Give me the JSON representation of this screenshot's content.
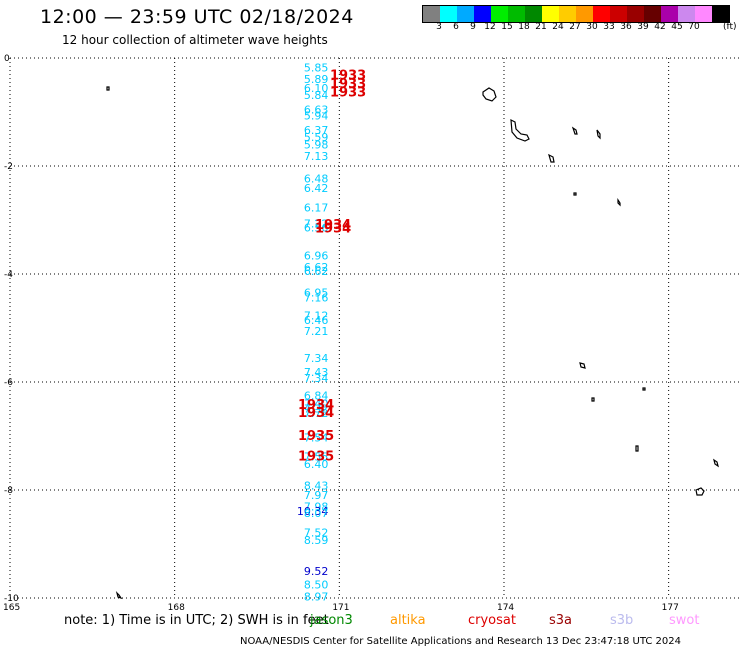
{
  "title": "12:00 — 23:59 UTC 02/18/2024",
  "subtitle": "12 hour collection of altimeter wave heights",
  "colorbar": {
    "colors": [
      "#808080",
      "#00ffff",
      "#00aaff",
      "#0000ff",
      "#00ee00",
      "#00bb00",
      "#008800",
      "#ffff00",
      "#ffcc00",
      "#ff9900",
      "#ff0000",
      "#cc0000",
      "#990000",
      "#660000",
      "#aa00aa",
      "#cc88ee",
      "#ff88ff",
      "#000000"
    ],
    "labels": [
      "3",
      "6",
      "9",
      "12",
      "15",
      "18",
      "21",
      "24",
      "27",
      "30",
      "33",
      "36",
      "39",
      "42",
      "45",
      "70"
    ],
    "unit": "(ft)"
  },
  "axes": {
    "lat_ticks": [
      "0",
      "-2",
      "-4",
      "-6",
      "-8",
      "-10"
    ],
    "lon_ticks": [
      "165",
      "168",
      "171",
      "174",
      "177"
    ]
  },
  "map_data": {
    "lon_range": [
      165,
      178.3
    ],
    "lat_range": [
      -10,
      0
    ],
    "track_lon": 170.8,
    "swh_points": [
      {
        "lat": -0.28,
        "value": "5.85",
        "color": "#00ccff"
      },
      {
        "lat": -0.52,
        "value": "5.89",
        "color": "#00ccff"
      },
      {
        "lat": -0.7,
        "value": "6.10",
        "color": "#00ccff"
      },
      {
        "lat": -0.85,
        "value": "5.84",
        "color": "#00ccff"
      },
      {
        "lat": -1.15,
        "value": "6.63",
        "color": "#00ccff"
      },
      {
        "lat": -1.28,
        "value": "5.94",
        "color": "#00ccff"
      },
      {
        "lat": -1.58,
        "value": "6.37",
        "color": "#00ccff"
      },
      {
        "lat": -1.72,
        "value": "5.59",
        "color": "#00ccff"
      },
      {
        "lat": -1.88,
        "value": "5.98",
        "color": "#00ccff"
      },
      {
        "lat": -2.12,
        "value": "7.13",
        "color": "#00ccff"
      },
      {
        "lat": -2.58,
        "value": "6.48",
        "color": "#00ccff"
      },
      {
        "lat": -2.78,
        "value": "6.42",
        "color": "#00ccff"
      },
      {
        "lat": -3.18,
        "value": "6.17",
        "color": "#00ccff"
      },
      {
        "lat": -3.52,
        "value": "7.22",
        "color": "#00ccff"
      },
      {
        "lat": -3.6,
        "value": "6.56",
        "color": "#00ccff"
      },
      {
        "lat": -4.18,
        "value": "6.96",
        "color": "#00ccff"
      },
      {
        "lat": -4.42,
        "value": "6.62",
        "color": "#00ccff"
      },
      {
        "lat": -4.5,
        "value": "6.62",
        "color": "#00ccff"
      },
      {
        "lat": -4.95,
        "value": "6.95",
        "color": "#00ccff"
      },
      {
        "lat": -5.05,
        "value": "7.16",
        "color": "#00ccff"
      },
      {
        "lat": -5.42,
        "value": "7.12",
        "color": "#00ccff"
      },
      {
        "lat": -5.52,
        "value": "6.46",
        "color": "#00ccff"
      },
      {
        "lat": -5.75,
        "value": "7.21",
        "color": "#00ccff"
      },
      {
        "lat": -6.3,
        "value": "7.34",
        "color": "#00ccff"
      },
      {
        "lat": -6.6,
        "value": "7.43",
        "color": "#00ccff"
      },
      {
        "lat": -6.72,
        "value": "7.34",
        "color": "#00ccff"
      },
      {
        "lat": -7.08,
        "value": "6.84",
        "color": "#00ccff"
      },
      {
        "lat": -7.25,
        "value": "7.40",
        "color": "#00aaff"
      },
      {
        "lat": -7.35,
        "value": "7.32",
        "color": "#00ccff"
      },
      {
        "lat": -7.45,
        "value": "7.72",
        "color": "#00ccff"
      },
      {
        "lat": -7.95,
        "value": "7.54",
        "color": "#00ccff"
      },
      {
        "lat": -8.35,
        "value": "7.55",
        "color": "#00ccff"
      },
      {
        "lat": -8.5,
        "value": "6.40",
        "color": "#00ccff"
      },
      {
        "lat": -8.95,
        "value": "8.43",
        "color": "#00ccff"
      },
      {
        "lat": -9.15,
        "value": "7.97",
        "color": "#00ccff"
      },
      {
        "lat": -9.38,
        "value": "7.98",
        "color": "#00ccff"
      },
      {
        "lat": -9.48,
        "value": "10.34",
        "color": "#0000cc"
      },
      {
        "lat": -9.52,
        "value": "8.07",
        "color": "#00ccff"
      },
      {
        "lat": -9.92,
        "value": "7.52",
        "color": "#00ccff"
      },
      {
        "lat": -10.08,
        "value": "8.59",
        "color": "#00ccff"
      },
      {
        "lat": -10.72,
        "value": "9.52",
        "color": "#0000cc"
      },
      {
        "lat": -11.0,
        "value": "8.50",
        "color": "#00ccff"
      },
      {
        "lat": -11.25,
        "value": "8.97",
        "color": "#00ccff"
      }
    ],
    "time_labels": [
      {
        "lat": -0.45,
        "value": "1933"
      },
      {
        "lat": -0.62,
        "value": "1933"
      },
      {
        "lat": -0.8,
        "value": "1933"
      },
      {
        "lat": -3.55,
        "value": "1934"
      },
      {
        "lat": -3.62,
        "value": "1934"
      },
      {
        "lat": -7.28,
        "value": "1934"
      },
      {
        "lat": -7.45,
        "value": "1934"
      },
      {
        "lat": -7.92,
        "value": "1935"
      },
      {
        "lat": -8.35,
        "value": "1935"
      }
    ],
    "time_label_color": "#dd0000"
  },
  "footer": {
    "note": "note:  1) Time is in UTC; 2) SWH is in feet",
    "satellites": [
      {
        "name": "jason3",
        "color": "#008800"
      },
      {
        "name": "altika",
        "color": "#ff9900"
      },
      {
        "name": "cryosat",
        "color": "#dd0000"
      },
      {
        "name": "s3a",
        "color": "#990000"
      },
      {
        "name": "s3b",
        "color": "#bbbbee"
      },
      {
        "name": "swot",
        "color": "#ff99ff"
      }
    ],
    "credit": "NOAA/NESDIS Center for Satellite Applications and Research     13 Dec 23:47:18 UTC 2024"
  }
}
